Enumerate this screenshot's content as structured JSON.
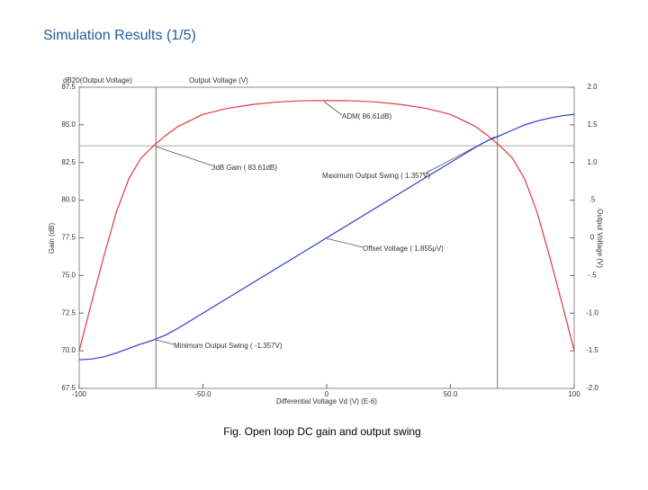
{
  "page_title": "Simulation Results (1/5)",
  "caption": "Fig. Open loop DC gain and output swing",
  "chart_data": {
    "type": "line",
    "y_label_top": "dB20(Output Voltage)",
    "y2_label_top": "Output Voltage (V)",
    "y_label": "Gain (dB)",
    "y2_label": "Output Voltage (V)",
    "x_label": "Differential Voltage Vd (V) (E-6)",
    "x": [
      -100,
      -95,
      -90,
      -85,
      -80,
      -75,
      -70,
      -65,
      -60,
      -50,
      -40,
      -30,
      -20,
      -10,
      0,
      10,
      20,
      30,
      40,
      50,
      60,
      65,
      70,
      75,
      80,
      85,
      90,
      95,
      100
    ],
    "series": [
      {
        "name": "dB20(Output Voltage)",
        "color": "#e03a3a",
        "values": [
          70.0,
          73.2,
          76.3,
          79.2,
          81.4,
          82.8,
          83.6,
          84.3,
          84.9,
          85.7,
          86.1,
          86.35,
          86.52,
          86.6,
          86.61,
          86.6,
          86.52,
          86.35,
          86.1,
          85.7,
          84.9,
          84.3,
          83.6,
          82.8,
          81.4,
          79.2,
          76.3,
          73.2,
          70.0
        ]
      },
      {
        "name": "Output Voltage",
        "color": "#2a3ccc",
        "axis": "y2",
        "values": [
          -1.62,
          -1.61,
          -1.58,
          -1.53,
          -1.47,
          -1.41,
          -1.357,
          -1.29,
          -1.2,
          -1.0,
          -0.8,
          -0.6,
          -0.4,
          -0.2,
          0.0,
          0.2,
          0.4,
          0.6,
          0.8,
          1.0,
          1.2,
          1.29,
          1.357,
          1.43,
          1.5,
          1.55,
          1.59,
          1.62,
          1.64
        ]
      }
    ],
    "xlim": [
      -100,
      100
    ],
    "xticks": [
      -100,
      {
        "value": -50,
        "label": "-50.0"
      },
      0,
      {
        "value": 50,
        "label": "50.0"
      },
      100
    ],
    "ylim": [
      67.5,
      87.5
    ],
    "yticks": [
      67.5,
      {
        "value": 70,
        "label": "70.0"
      },
      72.5,
      {
        "value": 75,
        "label": "75.0"
      },
      77.5,
      {
        "value": 80,
        "label": "80.0"
      },
      82.5,
      {
        "value": 85,
        "label": "85.0"
      },
      87.5
    ],
    "y2lim": [
      -2,
      2
    ],
    "y2ticks": [
      {
        "value": -2,
        "label": "-2.0"
      },
      -1.5,
      {
        "value": -1,
        "label": "-1.0"
      },
      {
        "value": -0.5,
        "label": "-.5"
      },
      0,
      {
        "value": 0.5,
        "label": ".5"
      },
      {
        "value": 1,
        "label": "1.0"
      },
      1.5,
      {
        "value": 2,
        "label": "2.0"
      }
    ],
    "markers_x": [
      -69,
      69
    ],
    "markers_y": [
      83.61
    ],
    "annotations": [
      "ADM( 86.61dB)",
      "3dB Gain ( 83.61dB)",
      "Maximum Output Swing ( 1.357V)",
      "Offset Voltage ( 1.855μV)",
      "Minimum Output Swing ( -1.357V)"
    ]
  }
}
